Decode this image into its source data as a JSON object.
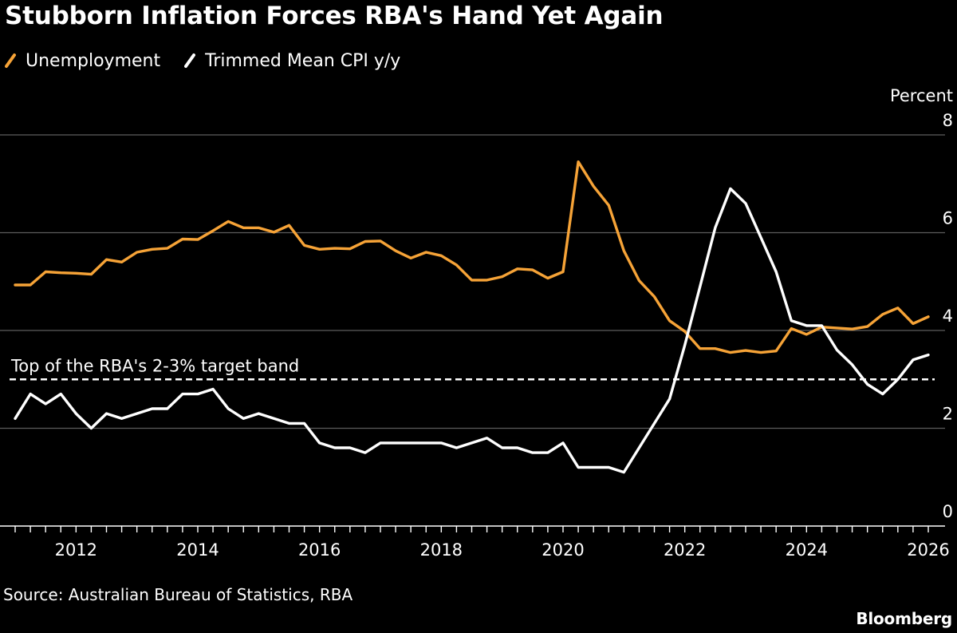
{
  "title": "Stubborn Inflation Forces RBA's Hand Yet Again",
  "source": "Source: Australian Bureau of Statistics, RBA",
  "brand": "Bloomberg",
  "colors": {
    "background": "#000000",
    "unemployment": "#f6a337",
    "cpi": "#ffffff",
    "grid": "#5c5c5c",
    "text": "#ffffff"
  },
  "chart_data": {
    "type": "line",
    "ylabel": "Percent",
    "ylim": [
      0,
      8
    ],
    "yticks": [
      0,
      2,
      4,
      6,
      8
    ],
    "xlim": [
      2011.0,
      2026.0
    ],
    "xticks": [
      2012,
      2014,
      2016,
      2018,
      2020,
      2022,
      2024,
      2026
    ],
    "grid": "horizontal",
    "legend_position": "top-left",
    "annotations": [
      {
        "text": "Top of the RBA's 2-3% target band",
        "y": 3.0
      }
    ],
    "series": [
      {
        "name": "Unemployment",
        "x": [
          2011.0,
          2011.25,
          2011.5,
          2011.75,
          2012.0,
          2012.25,
          2012.5,
          2012.75,
          2013.0,
          2013.25,
          2013.5,
          2013.75,
          2014.0,
          2014.25,
          2014.5,
          2014.75,
          2015.0,
          2015.25,
          2015.5,
          2015.75,
          2016.0,
          2016.25,
          2016.5,
          2016.75,
          2017.0,
          2017.25,
          2017.5,
          2017.75,
          2018.0,
          2018.25,
          2018.5,
          2018.75,
          2019.0,
          2019.25,
          2019.5,
          2019.75,
          2020.0,
          2020.25,
          2020.5,
          2020.75,
          2021.0,
          2021.25,
          2021.5,
          2021.75,
          2022.0,
          2022.25,
          2022.5,
          2022.75,
          2023.0,
          2023.25,
          2023.5,
          2023.75,
          2024.0,
          2024.25,
          2024.5,
          2024.75,
          2025.0,
          2025.25,
          2025.5,
          2025.75,
          2026.0
        ],
        "values": [
          4.93,
          4.93,
          5.2,
          5.18,
          5.17,
          5.15,
          5.45,
          5.4,
          5.6,
          5.66,
          5.68,
          5.87,
          5.86,
          6.04,
          6.23,
          6.1,
          6.1,
          6.01,
          6.15,
          5.74,
          5.66,
          5.68,
          5.67,
          5.82,
          5.83,
          5.63,
          5.48,
          5.6,
          5.53,
          5.34,
          5.03,
          5.03,
          5.1,
          5.26,
          5.24,
          5.07,
          5.2,
          7.45,
          6.95,
          6.56,
          5.63,
          5.02,
          4.69,
          4.2,
          3.98,
          3.63,
          3.63,
          3.55,
          3.59,
          3.55,
          3.58,
          4.04,
          3.92,
          4.07,
          4.05,
          4.03,
          4.08,
          4.33,
          4.46,
          4.14,
          4.28
        ]
      },
      {
        "name": "Trimmed Mean CPI y/y",
        "x": [
          2011.0,
          2011.25,
          2011.5,
          2011.75,
          2012.0,
          2012.25,
          2012.5,
          2012.75,
          2013.0,
          2013.25,
          2013.5,
          2013.75,
          2014.0,
          2014.25,
          2014.5,
          2014.75,
          2015.0,
          2015.25,
          2015.5,
          2015.75,
          2016.0,
          2016.25,
          2016.5,
          2016.75,
          2017.0,
          2017.25,
          2017.5,
          2017.75,
          2018.0,
          2018.25,
          2018.5,
          2018.75,
          2019.0,
          2019.25,
          2019.5,
          2019.75,
          2020.0,
          2020.25,
          2020.5,
          2020.75,
          2021.0,
          2021.25,
          2021.5,
          2021.75,
          2022.0,
          2022.25,
          2022.5,
          2022.75,
          2023.0,
          2023.25,
          2023.5,
          2023.75,
          2024.0,
          2024.25,
          2024.5,
          2024.75,
          2025.0,
          2025.25,
          2025.5,
          2025.75,
          2026.0
        ],
        "values": [
          2.2,
          2.7,
          2.5,
          2.7,
          2.3,
          2.0,
          2.3,
          2.2,
          2.3,
          2.4,
          2.4,
          2.7,
          2.7,
          2.8,
          2.4,
          2.2,
          2.3,
          2.2,
          2.1,
          2.1,
          1.7,
          1.6,
          1.6,
          1.5,
          1.7,
          1.7,
          1.7,
          1.7,
          1.7,
          1.6,
          1.7,
          1.8,
          1.6,
          1.6,
          1.5,
          1.5,
          1.7,
          1.2,
          1.2,
          1.2,
          1.1,
          1.6,
          2.1,
          2.6,
          3.7,
          4.9,
          6.1,
          6.9,
          6.6,
          5.9,
          5.2,
          4.2,
          4.1,
          4.1,
          3.6,
          3.3,
          2.9,
          2.7,
          3.0,
          3.4,
          3.5
        ]
      }
    ]
  }
}
